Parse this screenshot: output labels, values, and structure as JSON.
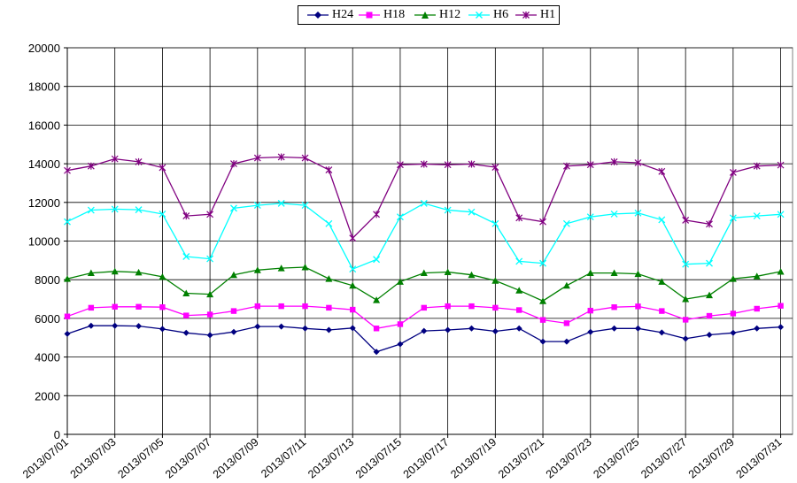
{
  "chart_data": {
    "type": "line",
    "title": "",
    "xlabel": "",
    "ylabel": "",
    "ylim": [
      0,
      20000
    ],
    "yticks": [
      "0",
      "2000",
      "4000",
      "6000",
      "8000",
      "10000",
      "12000",
      "14000",
      "16000",
      "18000",
      "20000"
    ],
    "grid": "vertical and horizontal major",
    "legend_position": "top-center",
    "x": [
      "2013/07/01",
      "2013/07/02",
      "2013/07/03",
      "2013/07/04",
      "2013/07/05",
      "2013/07/06",
      "2013/07/07",
      "2013/07/08",
      "2013/07/09",
      "2013/07/10",
      "2013/07/11",
      "2013/07/12",
      "2013/07/13",
      "2013/07/14",
      "2013/07/15",
      "2013/07/16",
      "2013/07/17",
      "2013/07/18",
      "2013/07/19",
      "2013/07/20",
      "2013/07/21",
      "2013/07/22",
      "2013/07/23",
      "2013/07/24",
      "2013/07/25",
      "2013/07/26",
      "2013/07/27",
      "2013/07/28",
      "2013/07/29",
      "2013/07/30",
      "2013/07/31"
    ],
    "xtick_labels": [
      "2013/07/01",
      "2013/07/03",
      "2013/07/05",
      "2013/07/07",
      "2013/07/09",
      "2013/07/11",
      "2013/07/13",
      "2013/07/15",
      "2013/07/17",
      "2013/07/19",
      "2013/07/21",
      "2013/07/23",
      "2013/07/25",
      "2013/07/27",
      "2013/07/29",
      "2013/07/31"
    ],
    "series": [
      {
        "name": "H24",
        "color": "#000080",
        "marker": "diamond",
        "values": [
          5200,
          5620,
          5620,
          5600,
          5450,
          5250,
          5130,
          5300,
          5580,
          5580,
          5480,
          5400,
          5500,
          4270,
          4670,
          5350,
          5400,
          5480,
          5330,
          5480,
          4800,
          4800,
          5300,
          5480,
          5480,
          5270,
          4950,
          5150,
          5250,
          5480,
          5550
        ]
      },
      {
        "name": "H18",
        "color": "#ff00ff",
        "marker": "square",
        "values": [
          6100,
          6550,
          6600,
          6600,
          6580,
          6150,
          6200,
          6380,
          6630,
          6630,
          6630,
          6550,
          6450,
          5480,
          5700,
          6550,
          6630,
          6630,
          6550,
          6430,
          5920,
          5750,
          6400,
          6580,
          6620,
          6380,
          5930,
          6130,
          6250,
          6500,
          6650
        ]
      },
      {
        "name": "H12",
        "color": "#008000",
        "marker": "triangle",
        "values": [
          8050,
          8350,
          8430,
          8380,
          8150,
          7300,
          7250,
          8250,
          8500,
          8600,
          8650,
          8050,
          7700,
          6950,
          7900,
          8350,
          8400,
          8250,
          7950,
          7450,
          6900,
          7700,
          8350,
          8350,
          8300,
          7900,
          7000,
          7200,
          8050,
          8180,
          8420
        ]
      },
      {
        "name": "H6",
        "color": "#00ffff",
        "marker": "x",
        "values": [
          11000,
          11600,
          11650,
          11620,
          11400,
          9200,
          9080,
          11700,
          11850,
          11950,
          11850,
          10900,
          8550,
          9050,
          11250,
          11950,
          11600,
          11500,
          10900,
          8950,
          8850,
          10900,
          11250,
          11400,
          11450,
          11100,
          8800,
          8850,
          11200,
          11300,
          11380
        ]
      },
      {
        "name": "H1",
        "color": "#800080",
        "marker": "star",
        "values": [
          13650,
          13880,
          14250,
          14100,
          13800,
          11300,
          11380,
          14000,
          14300,
          14350,
          14300,
          13680,
          10150,
          11380,
          13950,
          13980,
          13950,
          13980,
          13820,
          11200,
          11000,
          13880,
          13950,
          14100,
          14050,
          13600,
          11080,
          10880,
          13550,
          13880,
          13930
        ]
      }
    ]
  }
}
